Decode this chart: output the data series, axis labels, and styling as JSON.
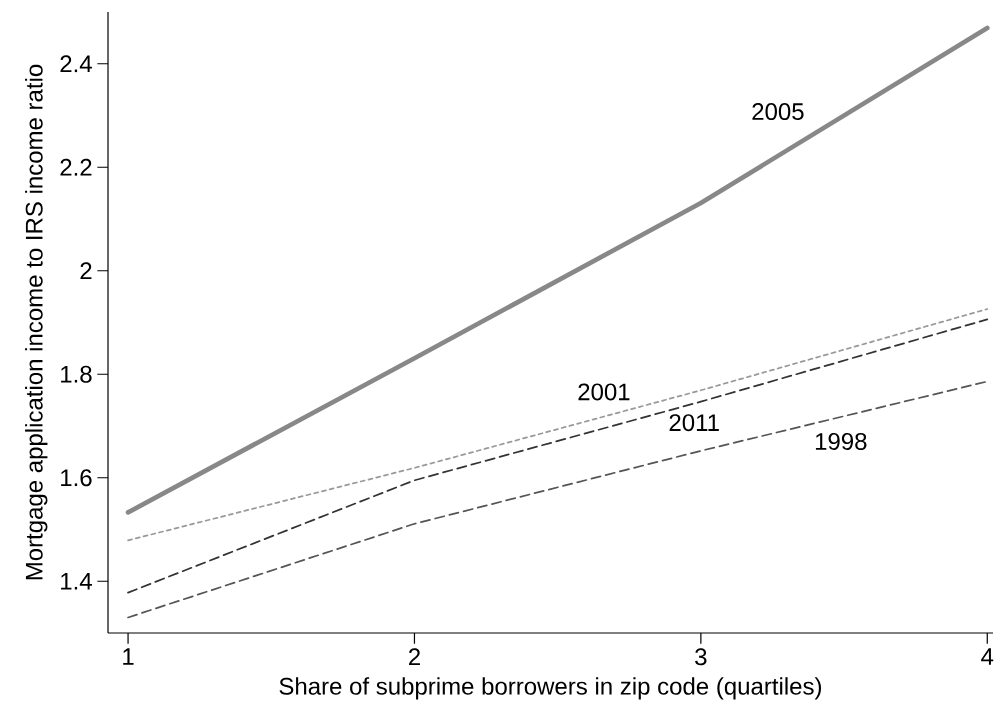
{
  "chart_data": {
    "type": "line",
    "xlabel": "Share of subprime borrowers in zip code (quartiles)",
    "ylabel": "Mortgage application income to IRS income ratio",
    "x": [
      1,
      2,
      3,
      4
    ],
    "xlim": [
      0.93,
      4.02
    ],
    "xticks": [
      1,
      2,
      3,
      4
    ],
    "ylim": [
      1.3,
      2.5
    ],
    "yticks": [
      1.4,
      1.6,
      1.8,
      2,
      2.2,
      2.4
    ],
    "grid": false,
    "legend": false,
    "marker": "none",
    "series": [
      {
        "name": "2005",
        "color": "#888888",
        "line_style": "solid",
        "values": [
          1.533,
          1.831,
          2.131,
          2.469
        ]
      },
      {
        "name": "2001",
        "color": "#999999",
        "line_style": "dotted",
        "values": [
          1.479,
          1.619,
          1.769,
          1.926
        ]
      },
      {
        "name": "2011",
        "color": "#333333",
        "line_style": "dashed",
        "values": [
          1.378,
          1.595,
          1.747,
          1.906
        ]
      },
      {
        "name": "1998",
        "color": "#555555",
        "line_style": "dashed",
        "values": [
          1.33,
          1.511,
          1.652,
          1.786
        ]
      }
    ]
  }
}
